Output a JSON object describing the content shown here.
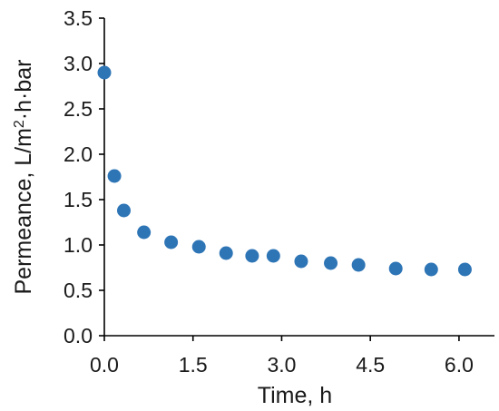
{
  "chart_data": {
    "type": "scatter",
    "title": "",
    "xlabel": "Time, h",
    "ylabel_prefix": "Permeance,  L/m",
    "ylabel_sup": "2",
    "ylabel_suffix": "·h·bar",
    "xlim": [
      0,
      6.6
    ],
    "ylim": [
      0,
      3.5
    ],
    "x_ticks": [
      0.0,
      1.5,
      3.0,
      4.5,
      6.0
    ],
    "x_tick_labels": [
      "0.0",
      "1.5",
      "3.0",
      "4.5",
      "6.0"
    ],
    "y_ticks": [
      0.0,
      0.5,
      1.0,
      1.5,
      2.0,
      2.5,
      3.0,
      3.5
    ],
    "y_tick_labels": [
      "0.0",
      "0.5",
      "1.0",
      "1.5",
      "2.0",
      "2.5",
      "3.0",
      "3.5"
    ],
    "grid": false,
    "legend": false,
    "marker_color": "#2e75b6",
    "series": [
      {
        "x": [
          0.0,
          0.17,
          0.33,
          0.67,
          1.13,
          1.6,
          2.06,
          2.5,
          2.86,
          3.33,
          3.83,
          4.3,
          4.93,
          5.53,
          6.1
        ],
        "y": [
          2.9,
          1.76,
          1.38,
          1.14,
          1.03,
          0.98,
          0.91,
          0.88,
          0.88,
          0.82,
          0.8,
          0.78,
          0.74,
          0.73,
          0.73
        ]
      }
    ]
  }
}
